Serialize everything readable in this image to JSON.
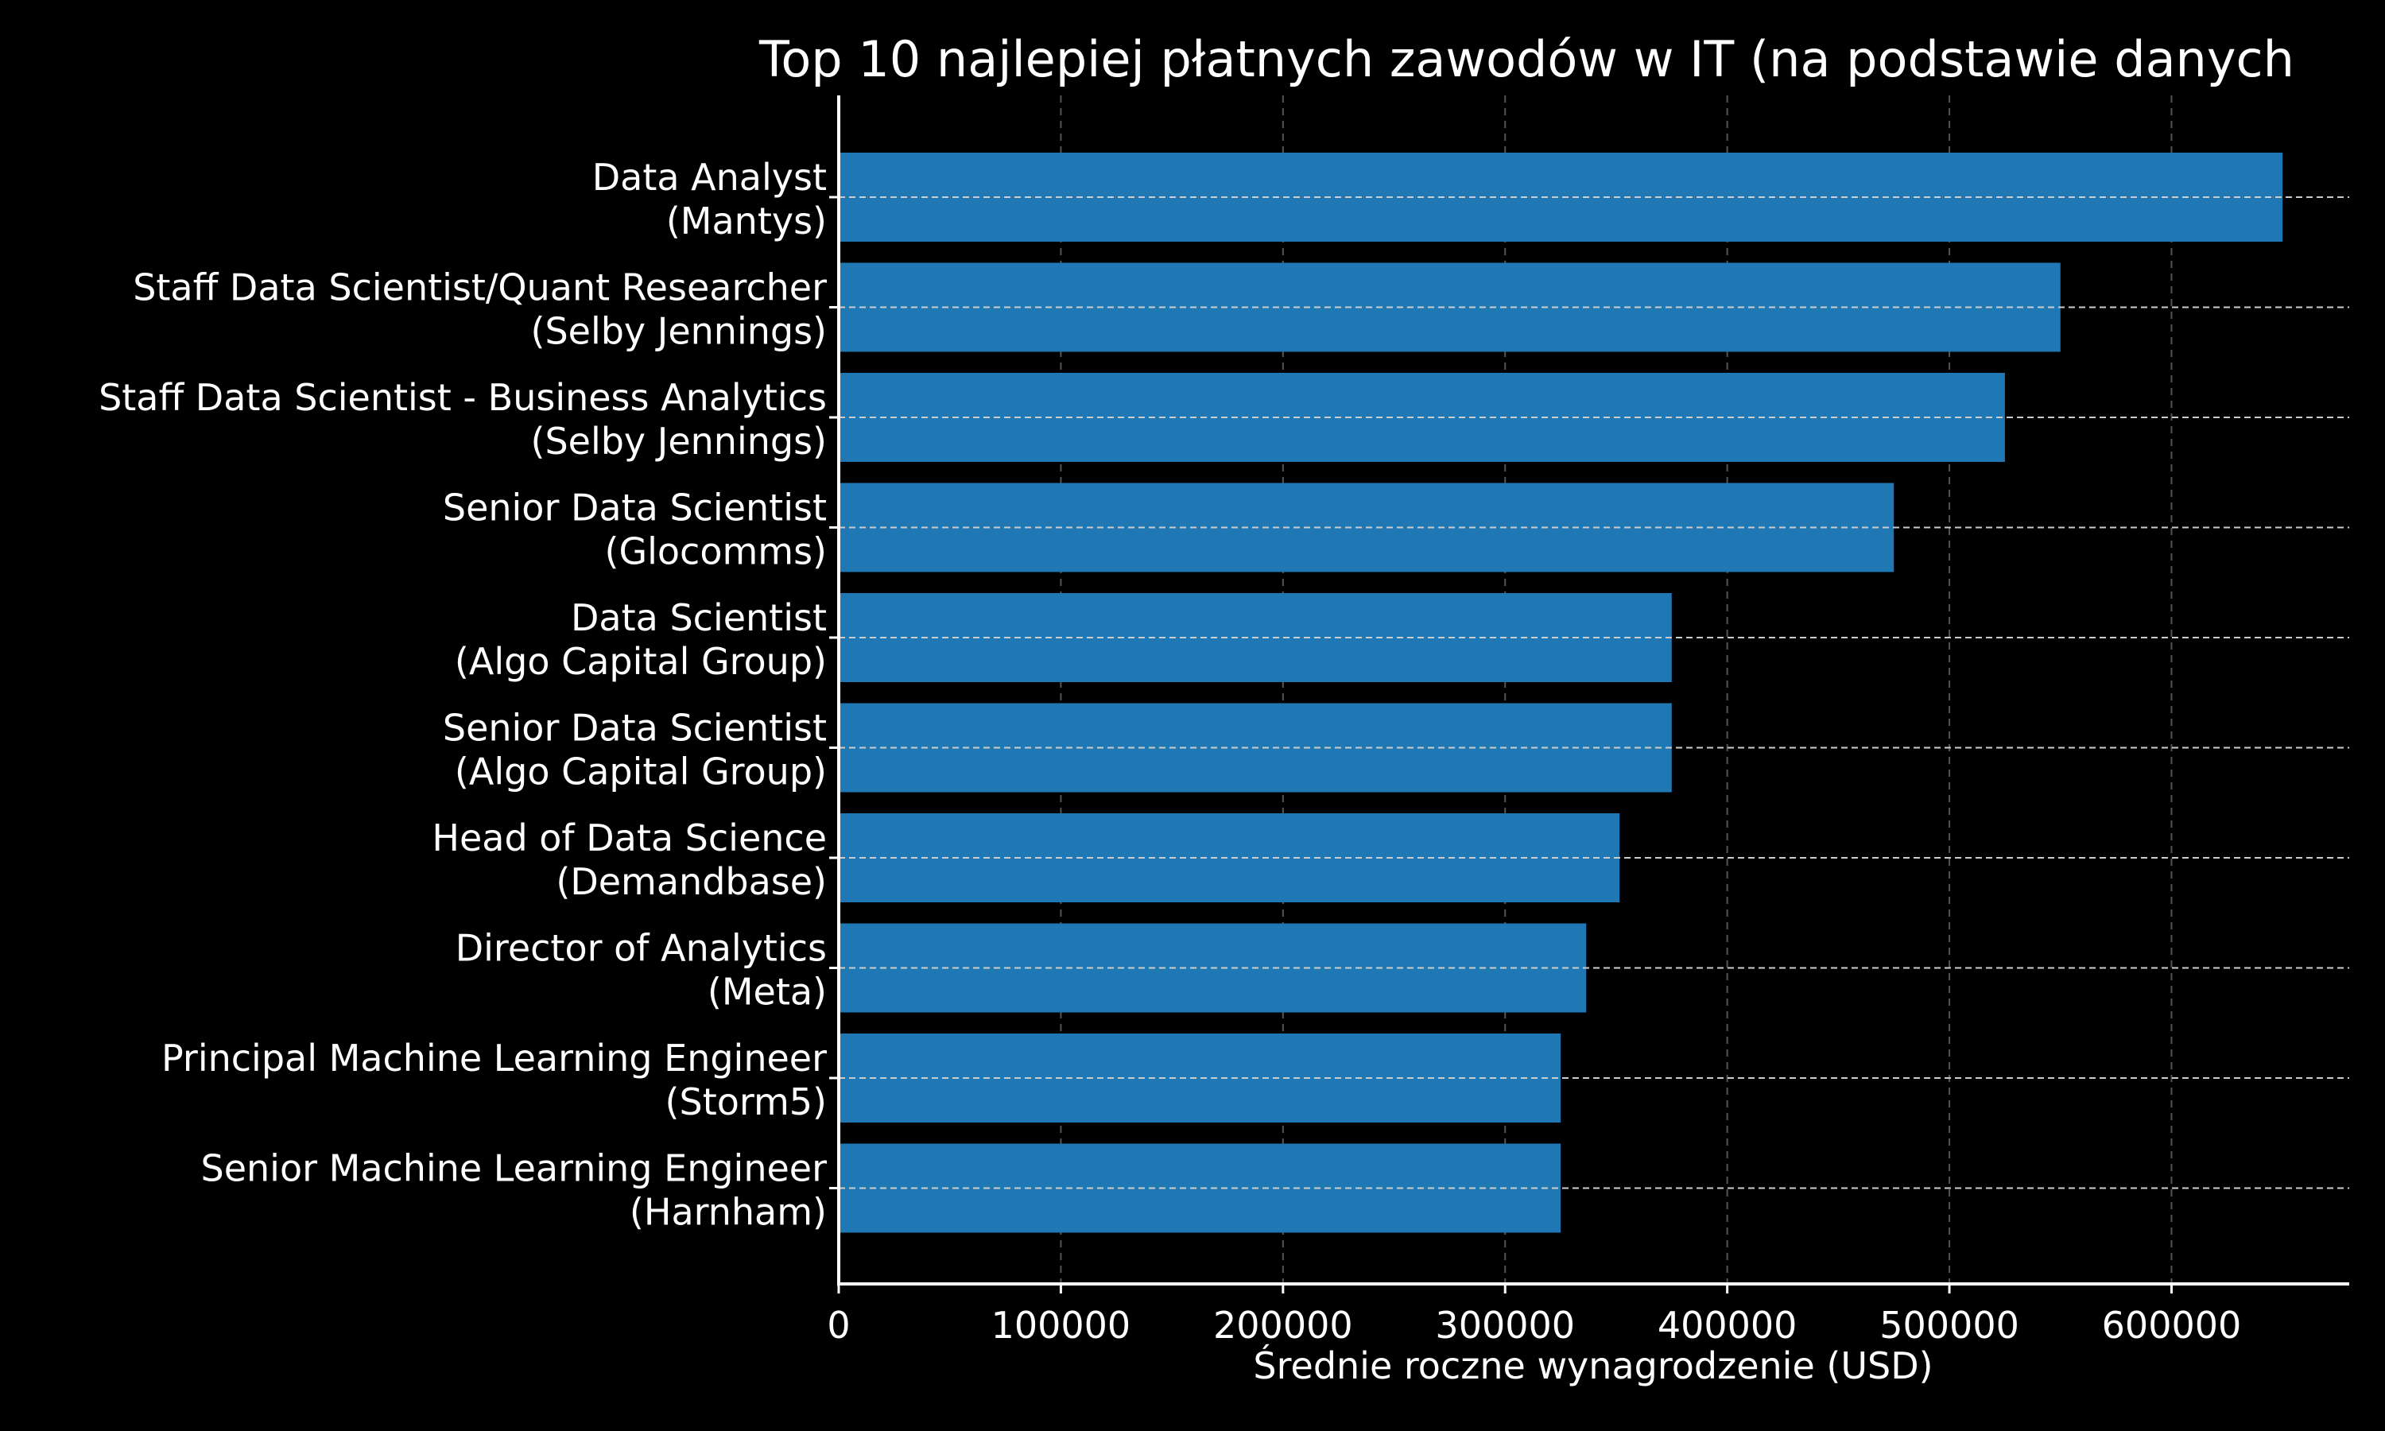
{
  "chart_data": {
    "type": "bar",
    "orientation": "horizontal",
    "title": "Top 10 najlepiej płatnych zawodów w IT (na podstawie danych",
    "xlabel": "Średnie roczne wynagrodzenie (USD)",
    "ylabel": "",
    "xlim": [
      0,
      680000
    ],
    "x_ticks": [
      0,
      100000,
      200000,
      300000,
      400000,
      500000,
      600000
    ],
    "x_tick_labels": [
      "0",
      "100000",
      "200000",
      "300000",
      "400000",
      "500000",
      "600000"
    ],
    "grid": {
      "x": true,
      "y": true
    },
    "legend": "none",
    "categories": [
      "Data Analyst\n(Mantys)",
      "Staff Data Scientist/Quant Researcher\n(Selby Jennings)",
      "Staff Data Scientist - Business Analytics\n(Selby Jennings)",
      "Senior Data Scientist\n(Glocomms)",
      "Data Scientist\n(Algo Capital Group)",
      "Senior Data Scientist\n(Algo Capital Group)",
      "Head of Data Science\n(Demandbase)",
      "Director of Analytics\n(Meta)",
      "Principal Machine Learning Engineer\n(Storm5)",
      "Senior Machine Learning Engineer\n(Harnham)"
    ],
    "values": [
      650000,
      550000,
      525000,
      475000,
      375000,
      375000,
      351500,
      336500,
      325000,
      325000
    ],
    "colors": {
      "bar": "#1f77b4",
      "background": "#000000",
      "text": "#ffffff",
      "axis": "#ffffff",
      "grid": "#555555",
      "row_grid": "#cccccc"
    }
  }
}
